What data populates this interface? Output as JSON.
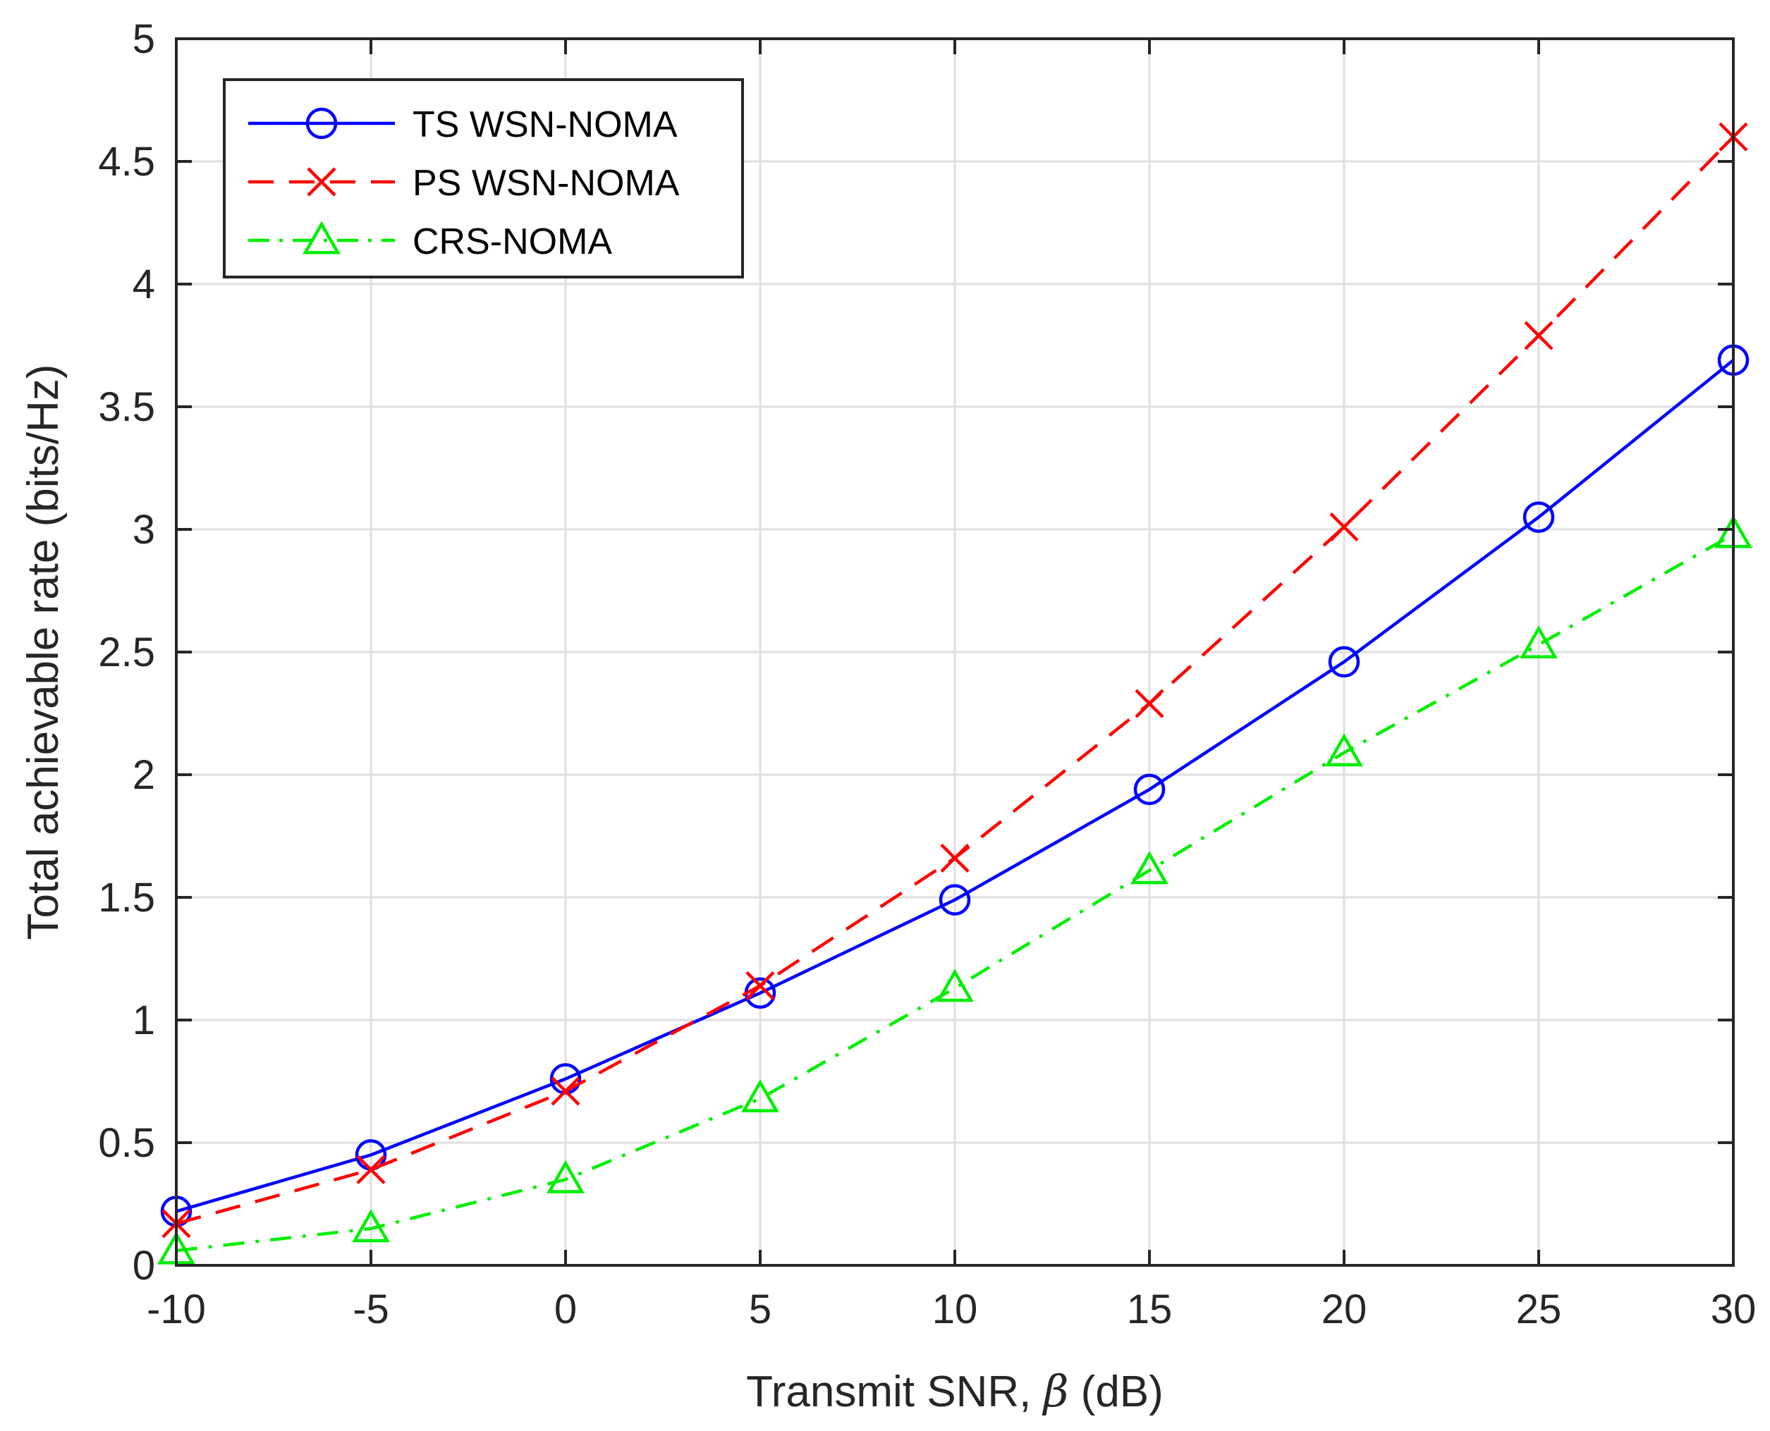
{
  "chart_data": {
    "type": "line",
    "title": "",
    "xlabel_prefix": "Transmit SNR,",
    "xlabel_symbol": "β",
    "xlabel_suffix": "(dB)",
    "ylabel": "Total achievable rate (bits/Hz)",
    "x": [
      -10,
      -5,
      0,
      5,
      10,
      15,
      20,
      25,
      30
    ],
    "xlim": [
      -10,
      30
    ],
    "ylim": [
      0,
      5
    ],
    "xticks": [
      -10,
      -5,
      0,
      5,
      10,
      15,
      20,
      25,
      30
    ],
    "xtick_labels": [
      "-10",
      "-5",
      "0",
      "5",
      "10",
      "15",
      "20",
      "25",
      "30"
    ],
    "yticks": [
      0,
      0.5,
      1,
      1.5,
      2,
      2.5,
      3,
      3.5,
      4,
      4.5,
      5
    ],
    "ytick_labels": [
      "0",
      "0.5",
      "1",
      "1.5",
      "2",
      "2.5",
      "3",
      "3.5",
      "4",
      "4.5",
      "5"
    ],
    "grid": true,
    "legend_position": "top-left",
    "series": [
      {
        "name": "TS WSN-NOMA",
        "color": "#0000ff",
        "line_style": "solid",
        "marker": "circle",
        "values": [
          0.22,
          0.45,
          0.76,
          1.11,
          1.49,
          1.94,
          2.46,
          3.05,
          3.69
        ]
      },
      {
        "name": "PS WSN-NOMA",
        "color": "#ff0000",
        "line_style": "dashed",
        "marker": "cross",
        "values": [
          0.17,
          0.39,
          0.71,
          1.14,
          1.66,
          2.29,
          3.01,
          3.79,
          4.6
        ]
      },
      {
        "name": "CRS-NOMA",
        "color": "#00ee00",
        "line_style": "dash-dot",
        "marker": "triangle",
        "values": [
          0.06,
          0.15,
          0.35,
          0.68,
          1.13,
          1.61,
          2.09,
          2.53,
          2.98
        ]
      }
    ]
  }
}
